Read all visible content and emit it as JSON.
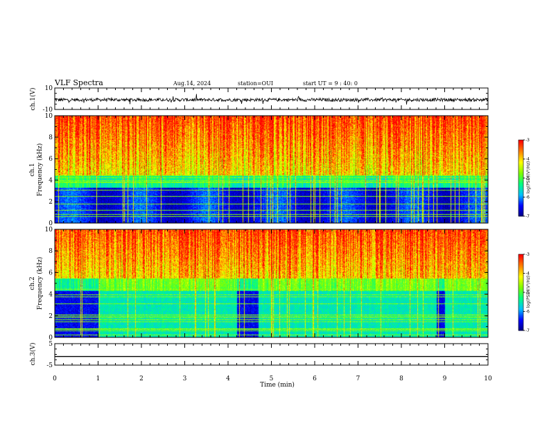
{
  "header": {
    "title": "VLF Spectra",
    "date": "Aug.14, 2024",
    "station": "station=OUI",
    "start": "start UT = 9 : 40: 0"
  },
  "colors": {
    "waveform": "#000000",
    "colormap": [
      "#00007f",
      "#0000ff",
      "#00bfff",
      "#00ff80",
      "#7fff00",
      "#ffff00",
      "#ff8000",
      "#ff0000"
    ]
  },
  "chart_data": [
    {
      "type": "line",
      "panel": "ch1-waveform",
      "ylabel": "ch.1(V)",
      "ylim": [
        -10,
        10
      ],
      "yticks": [
        "10",
        "-10"
      ],
      "description_values": {
        "baseline_V": -1,
        "noise_amplitude_V": 3
      }
    },
    {
      "type": "heatmap",
      "panel": "ch1-spectrogram",
      "ylabel": "ch.1\nFrequency (kHz)",
      "ylabel_lines": [
        "ch.1",
        "Frequency (kHz)"
      ],
      "ylim": [
        0,
        10
      ],
      "yticks": [
        "0",
        "2",
        "4",
        "6",
        "8",
        "10"
      ],
      "colorbar": {
        "label": "log(PSD)(V²/Hz)",
        "range": [
          -7,
          -3
        ],
        "ticks": [
          "-3",
          "-4",
          "-5",
          "-6",
          "-7"
        ]
      }
    },
    {
      "type": "heatmap",
      "panel": "ch2-spectrogram",
      "ylabel": "ch.2\nFrequency (kHz)",
      "ylabel_lines": [
        "ch.2",
        "Frequency (kHz)"
      ],
      "ylim": [
        0,
        10
      ],
      "yticks": [
        "0",
        "2",
        "4",
        "6",
        "8",
        "10"
      ],
      "colorbar": {
        "label": "log(PSD)(V²/Hz)",
        "range": [
          -7,
          -3
        ],
        "ticks": [
          "-3",
          "-4",
          "-5",
          "-6",
          "-7"
        ]
      }
    },
    {
      "type": "line",
      "panel": "ch3-waveform",
      "ylabel": "ch.3(V)",
      "ylim": [
        -5,
        5
      ],
      "yticks": [
        "5",
        "-5"
      ],
      "description_values": {
        "constant_V": -1
      }
    }
  ],
  "xaxis": {
    "label": "Time (min)",
    "xlim": [
      0,
      10
    ],
    "ticks": [
      "0",
      "1",
      "2",
      "3",
      "4",
      "5",
      "6",
      "7",
      "8",
      "9",
      "10"
    ]
  }
}
